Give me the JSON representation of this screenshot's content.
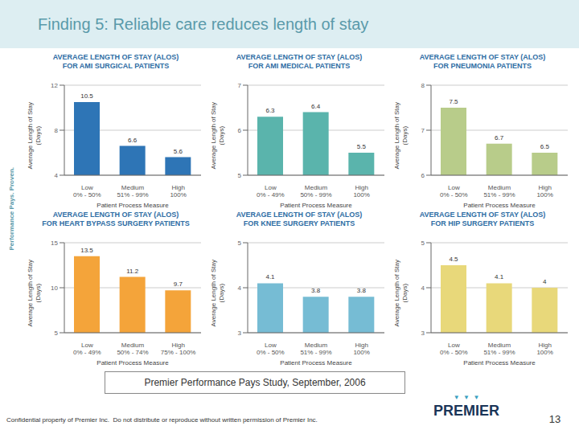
{
  "title": "Finding 5: Reliable care reduces length of stay",
  "annotations": [
    "Performance Pays. Proven.",
    "Premier Performance Pays Study, September, 2006",
    "Confidential property of Premier Inc.  Do not distribute or reproduce without written permission of Premier Inc.",
    "13",
    "▼  ▼  ▼",
    "PREMIER"
  ],
  "chart_data": [
    {
      "type": "bar",
      "title": "AVERAGE LENGTH OF STAY (ALOS)\nFOR AMI SURGICAL PATIENTS",
      "categories": [
        "Low\n0% - 50%",
        "Medium\n51% - 99%",
        "High\n100%"
      ],
      "values": [
        10.5,
        6.6,
        5.6
      ],
      "color": "#2e75b6",
      "ylim": [
        4.0,
        12.0
      ],
      "yticks": [
        4.0,
        8.0,
        12.0
      ],
      "grid": true,
      "data_labels": true,
      "xlabel": "Patient Process Measure",
      "ylabel": "Average Length of Stay\n(Days)"
    },
    {
      "type": "bar",
      "title": "AVERAGE LENGTH OF STAY (ALOS)\nFOR AMI MEDICAL PATIENTS",
      "categories": [
        "Low\n0% - 49%",
        "Medium\n50% - 99%",
        "High\n100%"
      ],
      "values": [
        6.3,
        6.4,
        5.5
      ],
      "color": "#5ab4ac",
      "ylim": [
        5.0,
        7.0
      ],
      "yticks": [
        5.0,
        6.0,
        7.0
      ],
      "grid": true,
      "data_labels": true,
      "xlabel": "Patient Process Measure",
      "ylabel": "Average Length of Stay\n(Days)"
    },
    {
      "type": "bar",
      "title": "AVERAGE LENGTH OF STAY (ALOS)\nFOR PNEUMONIA PATIENTS",
      "categories": [
        "Low\n0% - 50%",
        "Medium\n51% - 99%",
        "High\n100%"
      ],
      "values": [
        7.5,
        6.7,
        6.5
      ],
      "color": "#b8cc8a",
      "ylim": [
        6.0,
        8.0
      ],
      "yticks": [
        6.0,
        7.0,
        8.0
      ],
      "grid": true,
      "data_labels": true,
      "xlabel": "Patient Process Measure",
      "ylabel": "Average Length of Stay\n(Days)"
    },
    {
      "type": "bar",
      "title": "AVERAGE LENGTH OF STAY (ALOS)\nFOR HEART BYPASS SURGERY PATIENTS",
      "categories": [
        "Low\n0% - 49%",
        "Medium\n50% - 74%",
        "High\n75% - 100%"
      ],
      "values": [
        13.5,
        11.2,
        9.7
      ],
      "color": "#f4a43a",
      "ylim": [
        5.0,
        15.0
      ],
      "yticks": [
        5.0,
        10.0,
        15.0
      ],
      "grid": true,
      "data_labels": true,
      "xlabel": "Patient Process Measure",
      "ylabel": "Average Length of Stay\n(Days)"
    },
    {
      "type": "bar",
      "title": "AVERAGE LENGTH OF STAY (ALOS)\nFOR KNEE SURGERY PATIENTS",
      "categories": [
        "Low\n0% - 50%",
        "Medium\n51% - 99%",
        "High\n100%"
      ],
      "values": [
        4.1,
        3.8,
        3.8
      ],
      "color": "#76bcd4",
      "ylim": [
        3.0,
        5.0
      ],
      "yticks": [
        3.0,
        4.0,
        5.0
      ],
      "grid": true,
      "data_labels": true,
      "xlabel": "Patient Process Measure",
      "ylabel": "Average Length of Stay\n(Days)"
    },
    {
      "type": "bar",
      "title": "AVERAGE LENGTH OF STAY (ALOS)\nFOR HIP SURGERY PATIENTS",
      "categories": [
        "Low\n0% - 50%",
        "Medium\n51% - 99%",
        "High\n100%"
      ],
      "values": [
        4.5,
        4.1,
        4.0
      ],
      "color": "#e8d87a",
      "ylim": [
        3.0,
        5.0
      ],
      "yticks": [
        3.0,
        4.0,
        5.0
      ],
      "grid": true,
      "data_labels": true,
      "xlabel": "Patient Process Measure",
      "ylabel": "Average Length of Stay\n(Days)"
    }
  ]
}
